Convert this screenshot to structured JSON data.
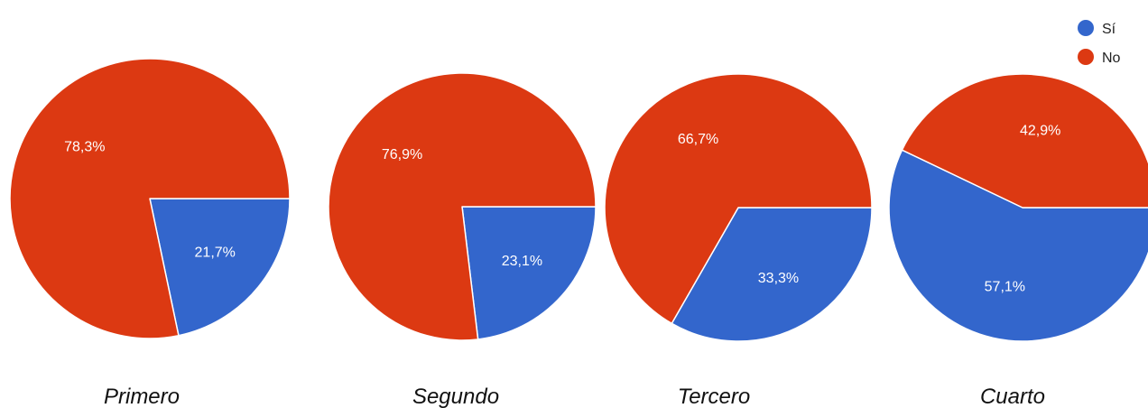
{
  "legend": {
    "position": "top-right",
    "items": [
      {
        "label": "Sí",
        "color": "#3366cc"
      },
      {
        "label": "No",
        "color": "#dc3912"
      }
    ]
  },
  "chart_data": [
    {
      "type": "pie",
      "title": "Primero",
      "categories": [
        "Sí",
        "No"
      ],
      "values": [
        21.7,
        78.3
      ],
      "labels": [
        "21,7%",
        "78,3%"
      ],
      "colors": [
        "#3366cc",
        "#dc3912"
      ]
    },
    {
      "type": "pie",
      "title": "Segundo",
      "categories": [
        "Sí",
        "No"
      ],
      "values": [
        23.1,
        76.9
      ],
      "labels": [
        "23,1%",
        "76,9%"
      ],
      "colors": [
        "#3366cc",
        "#dc3912"
      ]
    },
    {
      "type": "pie",
      "title": "Tercero",
      "categories": [
        "Sí",
        "No"
      ],
      "values": [
        33.3,
        66.7
      ],
      "labels": [
        "33,3%",
        "66,7%"
      ],
      "colors": [
        "#3366cc",
        "#dc3912"
      ]
    },
    {
      "type": "pie",
      "title": "Cuarto",
      "categories": [
        "Sí",
        "No"
      ],
      "values": [
        57.1,
        42.9
      ],
      "labels": [
        "57,1%",
        "42,9%"
      ],
      "colors": [
        "#3366cc",
        "#dc3912"
      ]
    }
  ]
}
